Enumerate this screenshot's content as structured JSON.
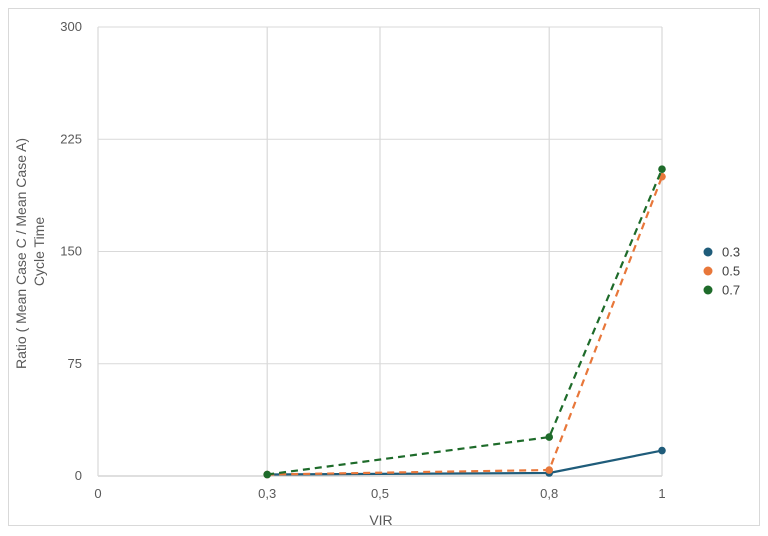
{
  "chart_data": {
    "type": "line",
    "title": "",
    "xlabel": "VIR",
    "ylabel_lines": [
      "Ratio ( Mean Case C / Mean Case A)",
      "Cycle Time"
    ],
    "x_ticks": [
      0,
      0.3,
      0.5,
      0.8,
      1
    ],
    "x_tick_labels": [
      "0",
      "0,3",
      "0,5",
      "0,8",
      "1"
    ],
    "xlim": [
      0,
      1
    ],
    "y_ticks": [
      0,
      75,
      150,
      225,
      300
    ],
    "y_tick_labels": [
      "0",
      "75",
      "150",
      "225",
      "300"
    ],
    "ylim": [
      0,
      300
    ],
    "grid": true,
    "legend_position": "right",
    "series": [
      {
        "name": "0.3",
        "color": "#1f5c7a",
        "dash": "solid",
        "points": [
          [
            0.3,
            1
          ],
          [
            0.8,
            2
          ],
          [
            1,
            17
          ]
        ]
      },
      {
        "name": "0.5",
        "color": "#e8773a",
        "dash": "dashed",
        "points": [
          [
            0.3,
            1
          ],
          [
            0.8,
            4
          ],
          [
            1,
            200
          ]
        ]
      },
      {
        "name": "0.7",
        "color": "#1e6b2a",
        "dash": "dashed",
        "points": [
          [
            0.3,
            1
          ],
          [
            0.8,
            26
          ],
          [
            1,
            205
          ]
        ]
      }
    ]
  }
}
